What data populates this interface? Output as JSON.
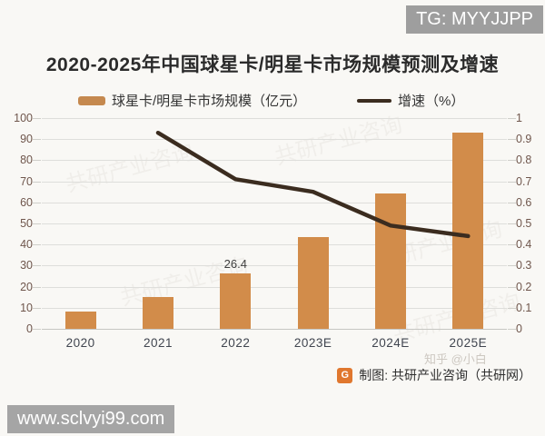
{
  "badges": {
    "tg": "TG: MYYJJPP",
    "url": "www.sclvyi99.com"
  },
  "chart_data": {
    "type": "bar+line",
    "title": "2020-2025年中国球星卡/明星卡市场规模预测及增速",
    "categories": [
      "2020",
      "2021",
      "2022",
      "2023E",
      "2024E",
      "2025E"
    ],
    "series": [
      {
        "name": "球星卡/明星卡市场规模（亿元）",
        "type": "bar",
        "axis": "left",
        "color": "#d28c4a",
        "values": [
          8,
          15,
          26.4,
          43.5,
          64.3,
          93
        ],
        "labels": [
          null,
          null,
          "26.4",
          null,
          null,
          null
        ]
      },
      {
        "name": "增速（%）",
        "type": "line",
        "axis": "right",
        "color": "#3b2c1f",
        "values": [
          null,
          0.93,
          0.71,
          0.65,
          0.49,
          0.44
        ]
      }
    ],
    "left_axis": {
      "min": 0,
      "max": 100,
      "step": 10,
      "ticks": [
        "100",
        "90",
        "80",
        "70",
        "60",
        "50",
        "40",
        "30",
        "20",
        "10",
        "0"
      ]
    },
    "right_axis": {
      "min": 0,
      "max": 1,
      "step": 0.1,
      "ticks": [
        "1",
        "0.9",
        "0.8",
        "0.7",
        "0.6",
        "0.5",
        "0.4",
        "0.3",
        "0.2",
        "0.1",
        "0"
      ]
    },
    "grid": true,
    "legend_position": "top"
  },
  "source": {
    "logo_letter": "G",
    "text": "制图: 共研产业咨询（共研网）"
  },
  "watermarks": {
    "diagonal": "共研产业咨询",
    "corner": "知乎 @小白"
  }
}
